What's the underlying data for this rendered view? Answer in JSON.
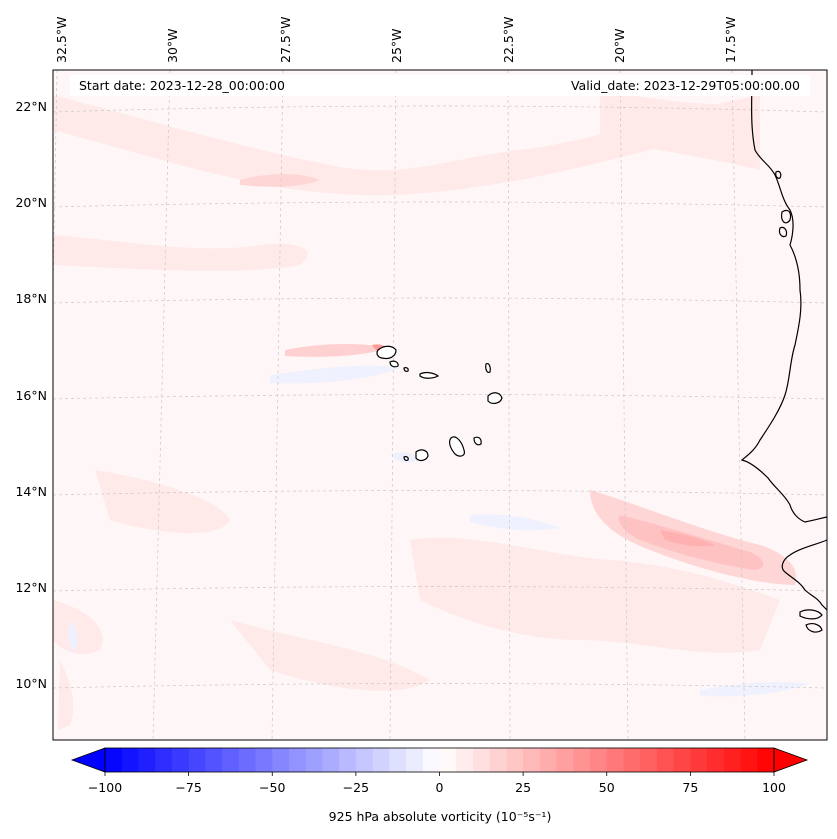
{
  "header": {
    "start_date": "Start date: 2023-12-28_00:00:00",
    "valid_date": "Valid_date: 2023-12-29T05:00:00.00"
  },
  "longitude_labels": [
    "32.5°W",
    "30°W",
    "27.5°W",
    "25°W",
    "22.5°W",
    "20°W",
    "17.5°W"
  ],
  "latitude_labels": [
    "22°N",
    "20°N",
    "18°N",
    "16°N",
    "14°N",
    "12°N",
    "10°N"
  ],
  "colorbar": {
    "min": -100,
    "max": 100,
    "step": 5,
    "ticks": [
      "−100",
      "−75",
      "−50",
      "−25",
      "0",
      "25",
      "50",
      "75",
      "100"
    ],
    "label": "925 hPa absolute vorticity (10⁻⁵s⁻¹)",
    "negative_color": "#0000ff",
    "zero_color": "#ffffff",
    "positive_color": "#ff0000"
  },
  "colors": {
    "field_background": "#fff7f7",
    "coastline": "#000000",
    "gridline": "#c8c8c8"
  }
}
